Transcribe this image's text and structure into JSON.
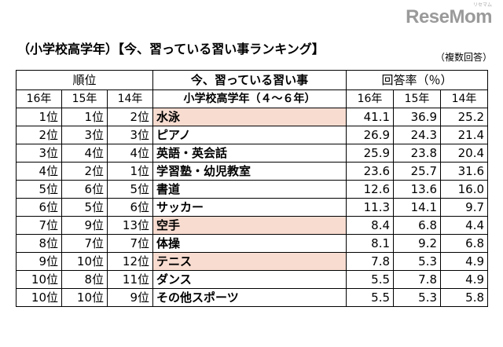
{
  "logo": {
    "text": "ReseMom",
    "small": "リセマム"
  },
  "heading": "（小学校高学年）【今、習っている習い事ランキング】",
  "note": "（複数回答）",
  "table": {
    "group_headers": {
      "rank": "順位",
      "activity": "今、習っている習い事",
      "rate": "回答率（％）"
    },
    "sub_headers": {
      "years_rank": [
        "16年",
        "15年",
        "14年"
      ],
      "activity": "小学校高学年（４～６年）",
      "years_rate": [
        "16年",
        "15年",
        "14年"
      ]
    },
    "highlight_color": "#f8dcd0",
    "rows": [
      {
        "r16": "1位",
        "r15": "1位",
        "r14": "2位",
        "activity": "水泳",
        "v16": "41.1",
        "v15": "36.9",
        "v14": "25.2",
        "highlight": true
      },
      {
        "r16": "2位",
        "r15": "3位",
        "r14": "3位",
        "activity": "ピアノ",
        "v16": "26.9",
        "v15": "24.3",
        "v14": "21.4",
        "highlight": false
      },
      {
        "r16": "3位",
        "r15": "4位",
        "r14": "4位",
        "activity": "英語・英会話",
        "v16": "25.9",
        "v15": "23.8",
        "v14": "20.4",
        "highlight": false
      },
      {
        "r16": "4位",
        "r15": "2位",
        "r14": "1位",
        "activity": "学習塾・幼児教室",
        "v16": "23.6",
        "v15": "25.7",
        "v14": "31.6",
        "highlight": false
      },
      {
        "r16": "5位",
        "r15": "6位",
        "r14": "5位",
        "activity": "書道",
        "v16": "12.6",
        "v15": "13.6",
        "v14": "16.0",
        "highlight": false
      },
      {
        "r16": "6位",
        "r15": "5位",
        "r14": "6位",
        "activity": "サッカー",
        "v16": "11.3",
        "v15": "14.1",
        "v14": "9.7",
        "highlight": false
      },
      {
        "r16": "7位",
        "r15": "9位",
        "r14": "13位",
        "activity": "空手",
        "v16": "8.4",
        "v15": "6.8",
        "v14": "4.4",
        "highlight": true
      },
      {
        "r16": "8位",
        "r15": "7位",
        "r14": "7位",
        "activity": "体操",
        "v16": "8.1",
        "v15": "9.2",
        "v14": "6.8",
        "highlight": false
      },
      {
        "r16": "9位",
        "r15": "10位",
        "r14": "12位",
        "activity": "テニス",
        "v16": "7.8",
        "v15": "5.3",
        "v14": "4.9",
        "highlight": true
      },
      {
        "r16": "10位",
        "r15": "8位",
        "r14": "11位",
        "activity": "ダンス",
        "v16": "5.5",
        "v15": "7.8",
        "v14": "4.9",
        "highlight": false
      },
      {
        "r16": "10位",
        "r15": "10位",
        "r14": "9位",
        "activity": "その他スポーツ",
        "v16": "5.5",
        "v15": "5.3",
        "v14": "5.8",
        "highlight": false
      }
    ]
  }
}
